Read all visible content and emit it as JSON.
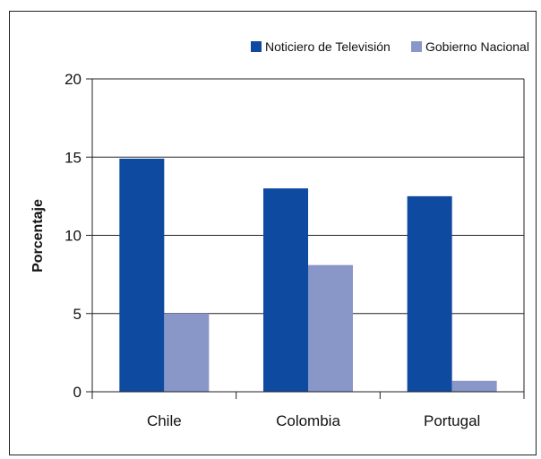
{
  "chart_data": {
    "type": "bar",
    "categories": [
      "Chile",
      "Colombia",
      "Portugal"
    ],
    "series": [
      {
        "name": "Noticiero de Televisión",
        "values": [
          14.9,
          13.0,
          12.5
        ],
        "color": "#0d4aa0"
      },
      {
        "name": "Gobierno Nacional",
        "values": [
          5.0,
          8.1,
          0.7
        ],
        "color": "#8896c8"
      }
    ],
    "title": "",
    "xlabel": "",
    "ylabel": "Porcentaje",
    "ylim": [
      0,
      20
    ],
    "yticks": [
      0,
      5,
      10,
      15,
      20
    ],
    "grid": true,
    "legend_position": "top-right"
  }
}
